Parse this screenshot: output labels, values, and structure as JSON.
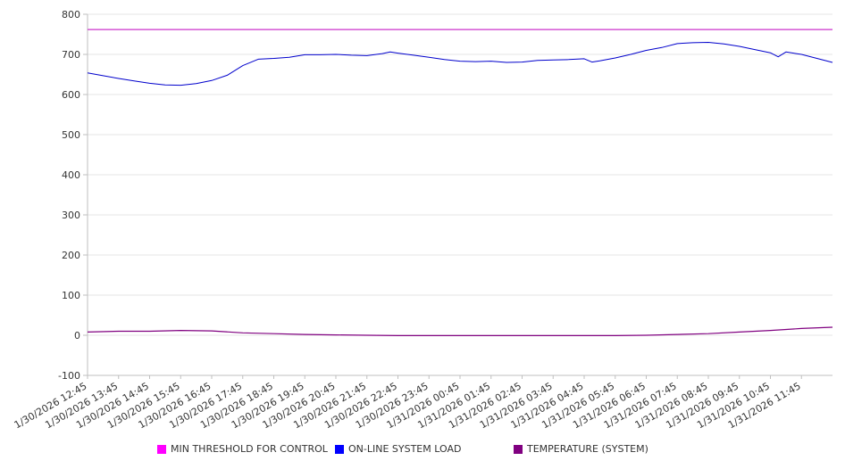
{
  "chart_data": {
    "type": "line",
    "title": "",
    "xlabel": "",
    "ylabel": "",
    "ylim": [
      -100,
      800
    ],
    "y_ticks": [
      "800",
      "700",
      "600",
      "500",
      "400",
      "300",
      "200",
      "100",
      "0",
      "-100"
    ],
    "x_ticks": [
      "1/30/2026 12:45",
      "1/30/2026 13:45",
      "1/30/2026 14:45",
      "1/30/2026 15:45",
      "1/30/2026 16:45",
      "1/30/2026 17:45",
      "1/30/2026 18:45",
      "1/30/2026 19:45",
      "1/30/2026 20:45",
      "1/30/2026 21:45",
      "1/30/2026 22:45",
      "1/30/2026 23:45",
      "1/31/2026 00:45",
      "1/31/2026 01:45",
      "1/31/2026 02:45",
      "1/31/2026 03:45",
      "1/31/2026 04:45",
      "1/31/2026 05:45",
      "1/31/2026 06:45",
      "1/31/2026 07:45",
      "1/31/2026 08:45",
      "1/31/2026 09:45",
      "1/31/2026 10:45",
      "1/31/2026 11:45"
    ],
    "x_end": "1/31/2026 12:45",
    "grid": true,
    "legend_position": "bottom",
    "series": [
      {
        "name": "MIN THRESHOLD FOR CONTROL",
        "color": "#cc33cc",
        "points": [
          [
            "1/30/2026 12:45",
            762
          ],
          [
            "1/31/2026 12:45",
            762
          ]
        ]
      },
      {
        "name": "ON-LINE SYSTEM LOAD",
        "color": "#0000cc",
        "points": [
          [
            "1/30/2026 12:45",
            654
          ],
          [
            "1/30/2026 13:15",
            647
          ],
          [
            "1/30/2026 13:45",
            640
          ],
          [
            "1/30/2026 14:15",
            634
          ],
          [
            "1/30/2026 14:45",
            628
          ],
          [
            "1/30/2026 15:15",
            624
          ],
          [
            "1/30/2026 15:45",
            623
          ],
          [
            "1/30/2026 16:15",
            627
          ],
          [
            "1/30/2026 16:45",
            635
          ],
          [
            "1/30/2026 17:15",
            648
          ],
          [
            "1/30/2026 17:45",
            672
          ],
          [
            "1/30/2026 18:15",
            688
          ],
          [
            "1/30/2026 18:45",
            690
          ],
          [
            "1/30/2026 19:15",
            693
          ],
          [
            "1/30/2026 19:45",
            699
          ],
          [
            "1/30/2026 20:15",
            699
          ],
          [
            "1/30/2026 20:45",
            700
          ],
          [
            "1/30/2026 21:15",
            698
          ],
          [
            "1/30/2026 21:45",
            697
          ],
          [
            "1/30/2026 22:15",
            702
          ],
          [
            "1/30/2026 22:30",
            706
          ],
          [
            "1/30/2026 22:45",
            703
          ],
          [
            "1/30/2026 23:15",
            698
          ],
          [
            "1/30/2026 23:45",
            693
          ],
          [
            "1/31/2026 00:15",
            687
          ],
          [
            "1/31/2026 00:45",
            683
          ],
          [
            "1/31/2026 01:15",
            682
          ],
          [
            "1/31/2026 01:45",
            683
          ],
          [
            "1/31/2026 02:15",
            680
          ],
          [
            "1/31/2026 02:45",
            681
          ],
          [
            "1/31/2026 03:15",
            685
          ],
          [
            "1/31/2026 03:45",
            686
          ],
          [
            "1/31/2026 04:15",
            687
          ],
          [
            "1/31/2026 04:45",
            689
          ],
          [
            "1/31/2026 05:00",
            681
          ],
          [
            "1/31/2026 05:15",
            684
          ],
          [
            "1/31/2026 05:45",
            691
          ],
          [
            "1/31/2026 06:15",
            700
          ],
          [
            "1/31/2026 06:45",
            710
          ],
          [
            "1/31/2026 07:15",
            717
          ],
          [
            "1/31/2026 07:45",
            727
          ],
          [
            "1/31/2026 08:15",
            729
          ],
          [
            "1/31/2026 08:45",
            730
          ],
          [
            "1/31/2026 09:15",
            726
          ],
          [
            "1/31/2026 09:45",
            720
          ],
          [
            "1/31/2026 10:15",
            712
          ],
          [
            "1/31/2026 10:45",
            704
          ],
          [
            "1/31/2026 11:00",
            694
          ],
          [
            "1/31/2026 11:15",
            706
          ],
          [
            "1/31/2026 11:45",
            700
          ],
          [
            "1/31/2026 12:15",
            690
          ],
          [
            "1/31/2026 12:45",
            680
          ]
        ]
      },
      {
        "name": "TEMPERATURE (SYSTEM)",
        "color": "#800080",
        "points": [
          [
            "1/30/2026 12:45",
            8
          ],
          [
            "1/30/2026 13:45",
            10
          ],
          [
            "1/30/2026 14:45",
            10
          ],
          [
            "1/30/2026 15:45",
            12
          ],
          [
            "1/30/2026 16:45",
            11
          ],
          [
            "1/30/2026 17:45",
            6
          ],
          [
            "1/30/2026 18:45",
            4
          ],
          [
            "1/30/2026 19:45",
            2
          ],
          [
            "1/30/2026 20:45",
            1
          ],
          [
            "1/30/2026 21:45",
            0
          ],
          [
            "1/30/2026 22:45",
            -1
          ],
          [
            "1/30/2026 23:45",
            -1
          ],
          [
            "1/31/2026 00:45",
            -1
          ],
          [
            "1/31/2026 01:45",
            -1
          ],
          [
            "1/31/2026 02:45",
            -1
          ],
          [
            "1/31/2026 03:45",
            -1
          ],
          [
            "1/31/2026 04:45",
            -1
          ],
          [
            "1/31/2026 05:45",
            -1
          ],
          [
            "1/31/2026 06:45",
            0
          ],
          [
            "1/31/2026 07:45",
            2
          ],
          [
            "1/31/2026 08:45",
            4
          ],
          [
            "1/31/2026 09:45",
            8
          ],
          [
            "1/31/2026 10:45",
            12
          ],
          [
            "1/31/2026 11:45",
            17
          ],
          [
            "1/31/2026 12:45",
            20
          ]
        ]
      }
    ]
  },
  "legend": {
    "items": [
      {
        "label": "MIN THRESHOLD FOR CONTROL",
        "color": "#ff00ff"
      },
      {
        "label": "ON-LINE SYSTEM LOAD",
        "color": "#0000ff"
      },
      {
        "label": "TEMPERATURE (SYSTEM)",
        "color": "#800080"
      }
    ]
  }
}
